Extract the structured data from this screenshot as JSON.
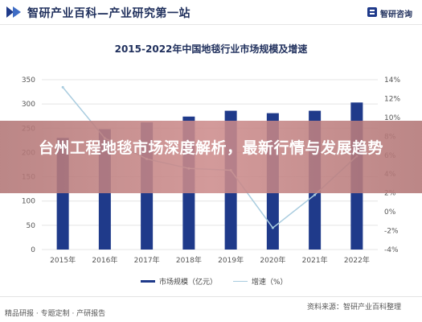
{
  "header": {
    "site_title": "智研产业百科—产业研究第一站",
    "brand": "智研咨询"
  },
  "overlay": {
    "headline": "台州工程地毯市场深度解析，最新行情与发展趋势"
  },
  "footer": {
    "left": "精品研报 · 专题定制 · 产研报告",
    "source": "资料来源：智研产业百科整理"
  },
  "colors": {
    "bar": "#1f3a8a",
    "line": "#a9ccdf",
    "title": "#1f2f5c",
    "banner": "#c08585"
  },
  "chart_data": {
    "type": "bar",
    "title": "2015-2022年中国地毯行业市场规模及增速",
    "categories": [
      "2015年",
      "2016年",
      "2017年",
      "2018年",
      "2019年",
      "2020年",
      "2021年",
      "2022年"
    ],
    "series": [
      {
        "name": "市场规模（亿元）",
        "type": "bar",
        "axis": "left",
        "values": [
          230,
          248,
          262,
          274,
          286,
          281,
          286,
          303
        ]
      },
      {
        "name": "增速（%）",
        "type": "line",
        "axis": "right",
        "values": [
          13.2,
          7.8,
          5.6,
          4.6,
          4.4,
          -1.7,
          1.8,
          5.9
        ]
      }
    ],
    "y_left": {
      "ticks": [
        "0",
        "50",
        "100",
        "150",
        "200",
        "250",
        "300",
        "350"
      ],
      "ylim": [
        0,
        350
      ]
    },
    "y_right": {
      "ticks": [
        "-4%",
        "-2%",
        "0%",
        "2%",
        "4%",
        "6%",
        "8%",
        "10%",
        "12%",
        "14%"
      ],
      "ylim": [
        -4,
        14
      ]
    },
    "legend_position": "bottom"
  }
}
